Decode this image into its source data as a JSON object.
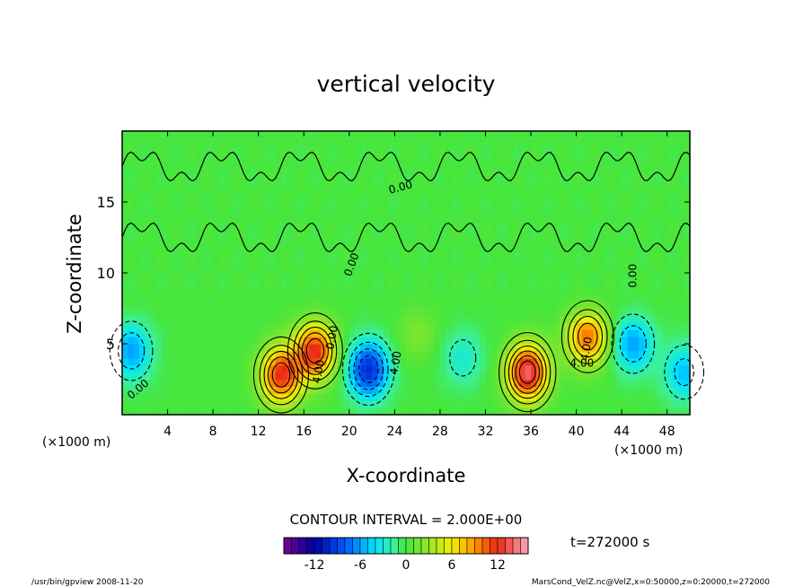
{
  "chart_data": {
    "type": "heatmap",
    "title": "vertical velocity",
    "xlabel": "X-coordinate",
    "ylabel": "Z-coordinate",
    "x_unit": "(×1000 m)",
    "x_unit_right": "(×1000 m)",
    "xlim": [
      0,
      50
    ],
    "ylim": [
      0,
      20
    ],
    "x_ticks": [
      4,
      8,
      12,
      16,
      20,
      24,
      28,
      32,
      36,
      40,
      44,
      48
    ],
    "y_ticks": [
      5,
      10,
      15
    ],
    "contour_interval": "CONTOUR INTERVAL = 2.000E+00",
    "contour_labels": [
      {
        "text": "0.00",
        "x": 1.6,
        "z": 1.6,
        "rot": -40
      },
      {
        "text": "0.00",
        "x": 20.5,
        "z": 10.5,
        "rot": -70
      },
      {
        "text": "0.00",
        "x": 18.8,
        "z": 5.4,
        "rot": -80
      },
      {
        "text": "0.00",
        "x": 24.6,
        "z": 15.8,
        "rot": -15
      },
      {
        "text": "0.00",
        "x": 45.3,
        "z": 9.8,
        "rot": -90
      },
      {
        "text": "4.00",
        "x": 17.6,
        "z": 3.0,
        "rot": -80
      },
      {
        "text": "4.00",
        "x": 24.4,
        "z": 3.6,
        "rot": -80
      },
      {
        "text": "4.00",
        "x": 41.2,
        "z": 4.6,
        "rot": -80
      },
      {
        "text": "4.00",
        "x": 40.5,
        "z": 3.4,
        "rot": 0
      }
    ],
    "features": [
      {
        "x": 0.8,
        "z": 4.5,
        "w": -6
      },
      {
        "x": 14.0,
        "z": 2.8,
        "w": 12
      },
      {
        "x": 17.0,
        "z": 4.5,
        "w": 12
      },
      {
        "x": 21.7,
        "z": 3.2,
        "w": -10
      },
      {
        "x": 35.7,
        "z": 3.0,
        "w": 14
      },
      {
        "x": 41.0,
        "z": 5.5,
        "w": 10
      },
      {
        "x": 45.0,
        "z": 5.0,
        "w": -6
      },
      {
        "x": 49.5,
        "z": 3.0,
        "w": -5
      },
      {
        "x": 26.0,
        "z": 5.8,
        "w": 2
      },
      {
        "x": 30.0,
        "z": 4.0,
        "w": -3
      }
    ],
    "colorbar": {
      "min": -16,
      "max": 16,
      "ticks": [
        "-12",
        "-6",
        "0",
        "6",
        "12"
      ],
      "tick_values": [
        -12,
        -6,
        0,
        6,
        12
      ]
    },
    "time_label": "t=272000 s"
  },
  "footer": {
    "left": "/usr/bin/gpview   2008-11-20",
    "right": "MarsCond_VelZ.nc@VelZ,x=0:50000,z=0:20000,t=272000"
  }
}
